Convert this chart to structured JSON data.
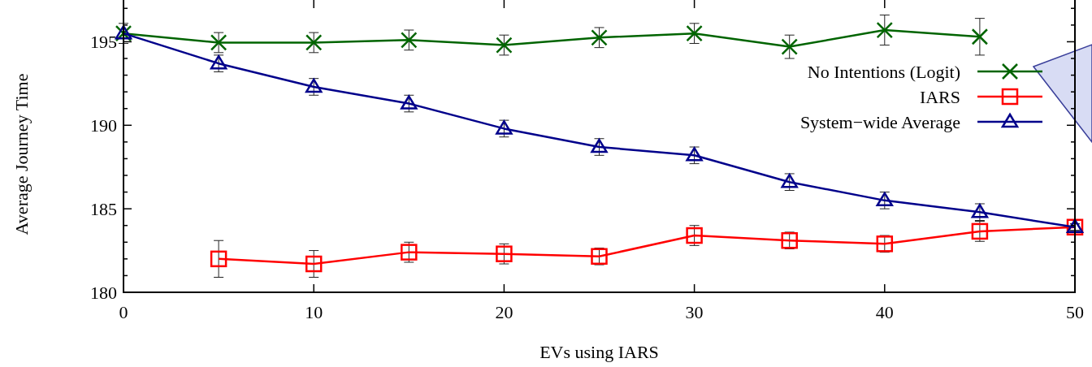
{
  "chart_data": {
    "type": "line",
    "xlabel": "EVs using IARS",
    "ylabel": "Average Journey Time",
    "x": [
      0,
      5,
      10,
      15,
      20,
      25,
      30,
      35,
      40,
      45,
      50
    ],
    "xlim": [
      0,
      50
    ],
    "xticks": [
      0,
      10,
      20,
      30,
      40,
      50
    ],
    "ylim": [
      180,
      197.5
    ],
    "yticks": [
      180,
      {
        "value": 181,
        "label": null
      },
      {
        "value": 182,
        "label": null
      },
      {
        "value": 183,
        "label": null
      },
      {
        "value": 184,
        "label": null
      },
      185,
      {
        "value": 186,
        "label": null
      },
      {
        "value": 187,
        "label": null
      },
      {
        "value": 188,
        "label": null
      },
      {
        "value": 189,
        "label": null
      },
      190,
      {
        "value": 191,
        "label": null
      },
      {
        "value": 192,
        "label": null
      },
      {
        "value": 193,
        "label": null
      },
      {
        "value": 194,
        "label": null
      },
      195,
      {
        "value": 196,
        "label": null
      },
      {
        "value": 197,
        "label": null
      }
    ],
    "grid": false,
    "legend": "top right",
    "line_style": "solid",
    "series": [
      {
        "name": "No Intentions (Logit)",
        "color": "#006400",
        "marker": "cross",
        "values": [
          195.5,
          194.95,
          194.95,
          195.1,
          194.8,
          195.25,
          195.5,
          194.7,
          195.7,
          195.3,
          null
        ],
        "errors": [
          0.6,
          0.6,
          0.6,
          0.6,
          0.6,
          0.6,
          0.6,
          0.7,
          0.9,
          1.1,
          null
        ]
      },
      {
        "name": "IARS",
        "color": "#ff0000",
        "marker": "square",
        "values": [
          null,
          182.0,
          181.7,
          182.4,
          182.3,
          182.15,
          183.4,
          183.1,
          182.9,
          183.65,
          183.9
        ],
        "errors": [
          null,
          1.1,
          0.8,
          0.6,
          0.6,
          0.5,
          0.6,
          0.5,
          0.5,
          0.6,
          0.2
        ]
      },
      {
        "name": "System−wide Average",
        "color": "#00008b",
        "marker": "triangle",
        "values": [
          195.5,
          193.7,
          192.3,
          191.3,
          189.8,
          188.7,
          188.2,
          186.6,
          185.5,
          184.8,
          183.9
        ],
        "errors": [
          null,
          0.5,
          0.5,
          0.5,
          0.5,
          0.5,
          0.5,
          0.5,
          0.5,
          0.5,
          0.2
        ]
      }
    ]
  }
}
